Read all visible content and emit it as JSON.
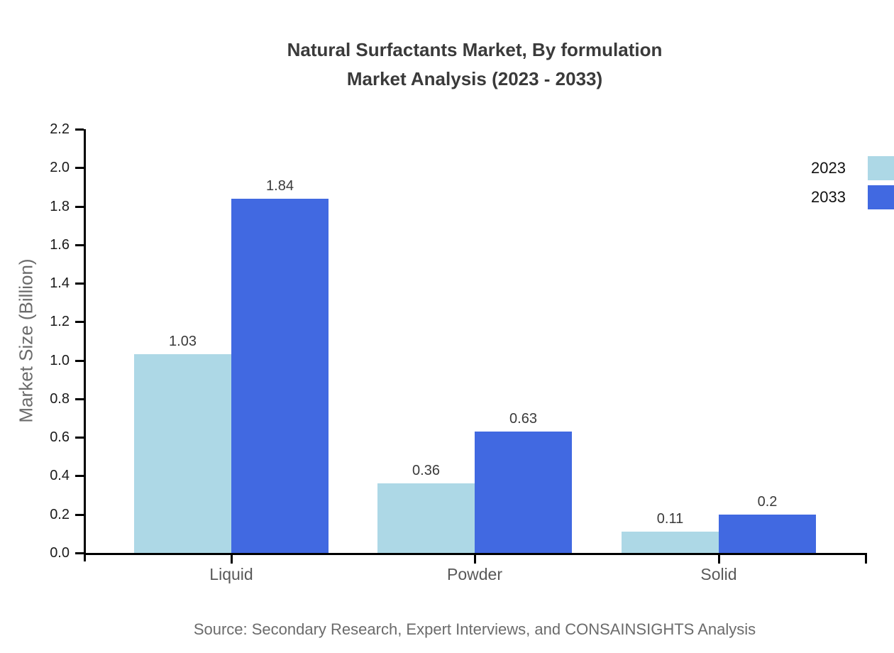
{
  "title": {
    "line1": "Natural Surfactants Market, By formulation",
    "line2": "Market Analysis (2023 - 2033)"
  },
  "chart_data": {
    "type": "bar",
    "title": "Natural Surfactants Market, By formulation Market Analysis (2023 - 2033)",
    "categories": [
      "Liquid",
      "Powder",
      "Solid"
    ],
    "series": [
      {
        "name": "2023",
        "color": "#add8e6",
        "values": [
          1.03,
          0.36,
          0.11
        ],
        "labels": [
          "1.03",
          "0.36",
          "0.11"
        ]
      },
      {
        "name": "2033",
        "color": "#4169e1",
        "values": [
          1.84,
          0.63,
          0.2
        ],
        "labels": [
          "1.84",
          "0.63",
          "0.2"
        ]
      }
    ],
    "xlabel": "",
    "ylabel": "Market Size (Billion)",
    "ylim": [
      0,
      2.2
    ],
    "yticks": [
      "0.0",
      "0.2",
      "0.4",
      "0.6",
      "0.8",
      "1.0",
      "1.2",
      "1.4",
      "1.6",
      "1.8",
      "2.0",
      "2.2"
    ],
    "grid": false,
    "legend_position": "upper right"
  },
  "footer": {
    "source": "Source: Secondary Research, Expert Interviews, and CONSAINSIGHTS Analysis"
  },
  "colors": {
    "series_2023": "#add8e6",
    "series_2033": "#4169e1",
    "title_text": "#3a3a3a",
    "axis": "#000000",
    "tick_label_text": "#1a1a1a",
    "muted_text": "#6b6b6b"
  }
}
